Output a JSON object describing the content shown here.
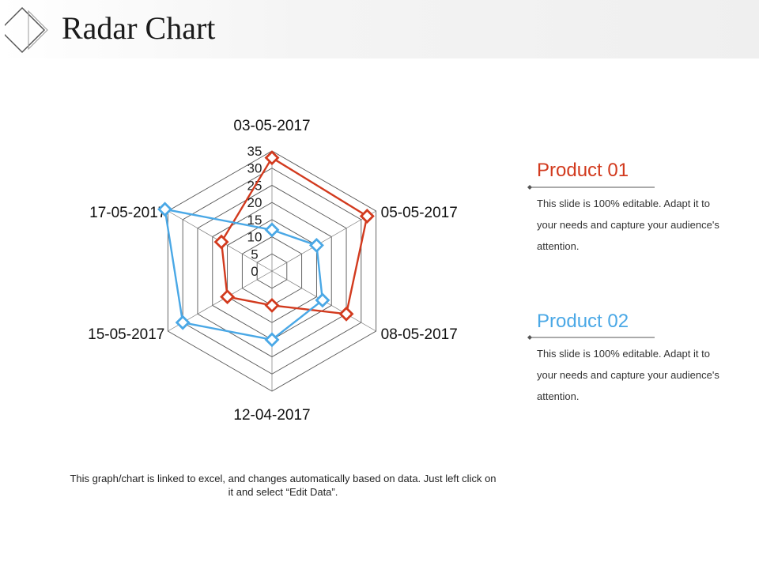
{
  "page": {
    "title": "Radar Chart",
    "footnote": "This graph/chart is linked to excel, and changes automatically based on data. Just left click on it and select “Edit Data”."
  },
  "legend": [
    {
      "name": "Product 01",
      "color": "#d23a1e",
      "description": "This slide is 100% editable. Adapt it to your needs and capture your audience's attention."
    },
    {
      "name": "Product 02",
      "color": "#4aa8e6",
      "description": "This slide is 100% editable. Adapt it to your needs and capture your audience's attention."
    }
  ],
  "chart_data": {
    "type": "radar",
    "categories": [
      "03-05-2017",
      "05-05-2017",
      "08-05-2017",
      "12-04-2017",
      "15-05-2017",
      "17-05-2017"
    ],
    "series": [
      {
        "name": "Product 01",
        "color": "#d23a1e",
        "values": [
          33,
          32,
          25,
          10,
          15,
          17
        ]
      },
      {
        "name": "Product 02",
        "color": "#4aa8e6",
        "values": [
          12,
          15,
          17,
          20,
          30,
          36
        ]
      }
    ],
    "rlim": [
      0,
      35
    ],
    "ticks": [
      "0",
      "5",
      "10",
      "15",
      "20",
      "25",
      "30",
      "35"
    ],
    "grid": true,
    "legend_position": "right"
  }
}
